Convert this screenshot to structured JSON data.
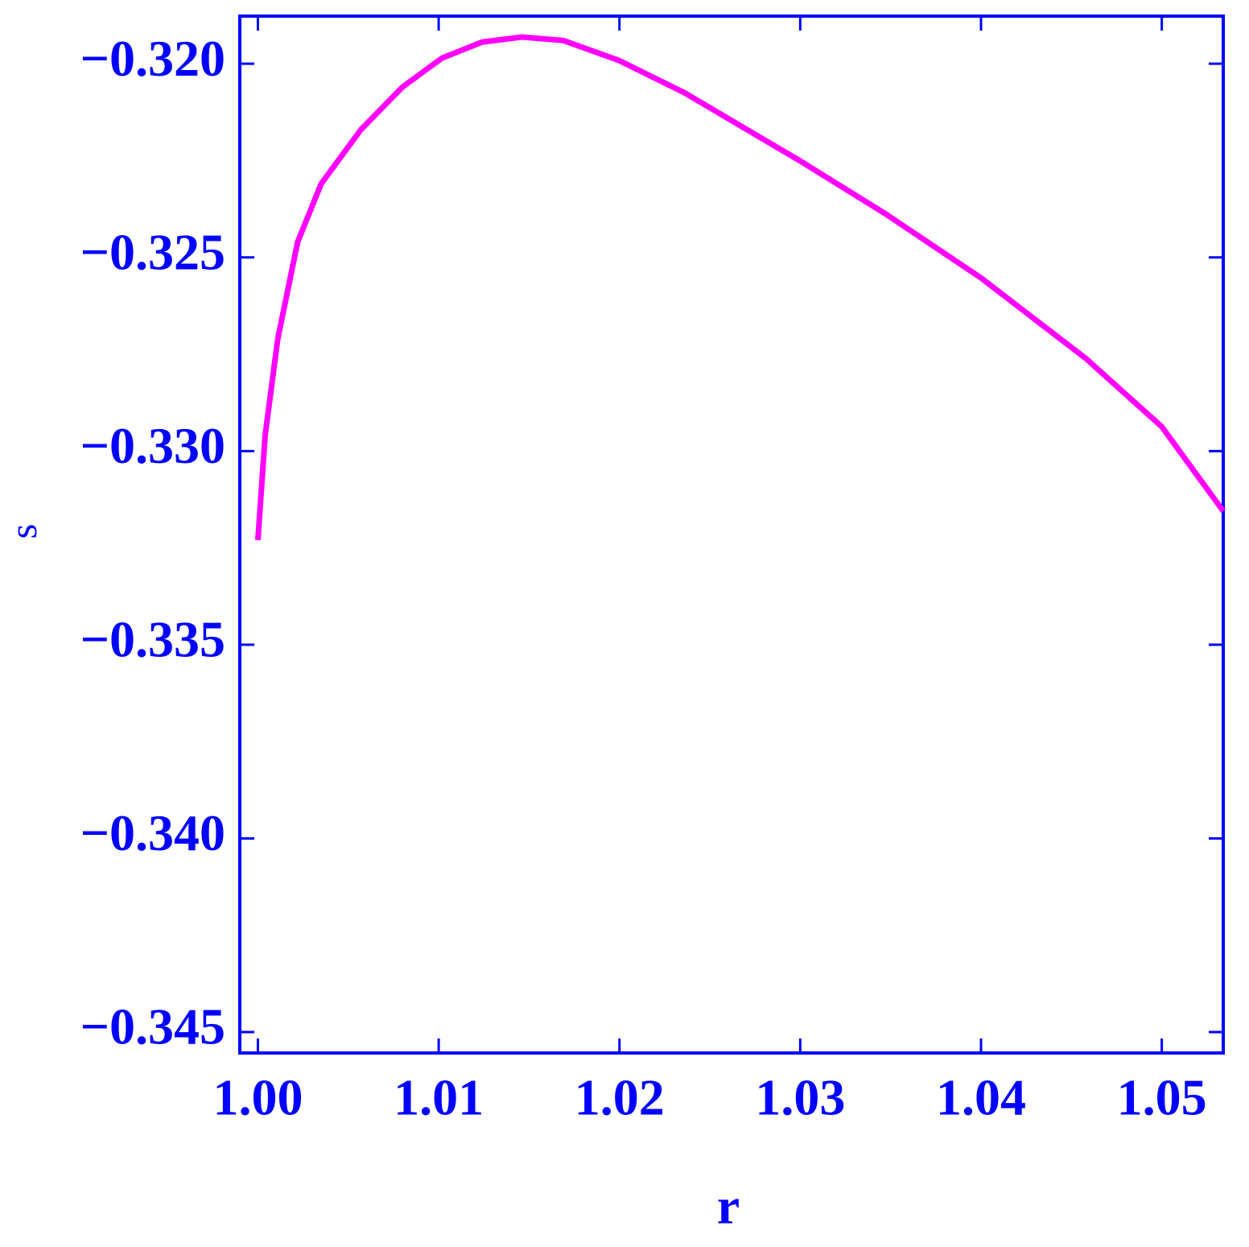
{
  "chart_data": {
    "type": "line",
    "x_label": "r",
    "y_label": "s",
    "x": [
      1.0,
      1.0004,
      1.0011,
      1.0022,
      1.0035,
      1.0057,
      1.008,
      1.0102,
      1.0124,
      1.0146,
      1.0169,
      1.02,
      1.0236,
      1.03,
      1.0347,
      1.04,
      1.0458,
      1.05,
      1.0534
    ],
    "series": [
      {
        "color": "#ff00ff",
        "values": [
          -0.3323,
          -0.3296,
          -0.3271,
          -0.3246,
          -0.3231,
          -0.3217,
          -0.3206,
          -0.31985,
          -0.31944,
          -0.31931,
          -0.3194,
          -0.31992,
          -0.32075,
          -0.32251,
          -0.32387,
          -0.32553,
          -0.32761,
          -0.32937,
          -0.33155
        ]
      }
    ],
    "xlim": [
      0.999,
      1.0534
    ],
    "ylim": [
      -0.34554,
      -0.31877
    ],
    "xticks": [
      {
        "value": 1.0,
        "label": "1.00"
      },
      1.01,
      1.02,
      1.03,
      1.04,
      1.05
    ],
    "yticks": [
      {
        "value": -0.32,
        "label": "−0.320"
      },
      {
        "value": -0.325,
        "label": "−0.325"
      },
      {
        "value": -0.33,
        "label": "−0.330"
      },
      {
        "value": -0.335,
        "label": "−0.335"
      },
      {
        "value": -0.34,
        "label": "−0.340"
      },
      {
        "value": -0.345,
        "label": "−0.345"
      }
    ],
    "axis_color": "#0000ff"
  }
}
